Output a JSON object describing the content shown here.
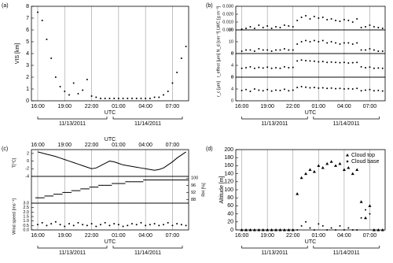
{
  "chart_data": [
    {
      "type": "scatter",
      "label": "(a)",
      "xlabel": "UTC",
      "dates": [
        "11/13/2011",
        "11/14/2011"
      ],
      "top_ticks": false,
      "x": [
        16,
        16.5,
        17,
        17.5,
        18,
        18.5,
        19,
        19.5,
        20,
        20.5,
        21,
        21.5,
        22,
        22.5,
        23,
        23.5,
        24,
        24.5,
        25,
        25.5,
        26,
        26.5,
        27,
        27.5,
        28,
        28.5,
        29,
        29.5,
        30,
        30.5,
        31,
        31.5,
        32,
        32.5
      ],
      "xlim": [
        15.3,
        32.8
      ],
      "xticks": [
        {
          "value": 16,
          "label": "16:00"
        },
        {
          "value": 19,
          "label": "19:00"
        },
        {
          "value": 22,
          "label": "22:00"
        },
        {
          "value": 25,
          "label": "01:00"
        },
        {
          "value": 28,
          "label": "04:00"
        },
        {
          "value": 31,
          "label": "07:00"
        }
      ],
      "subplots": [
        {
          "ylabel": "VIS [km]",
          "ylim": [
            0,
            8
          ],
          "yticks": [
            0,
            1,
            2,
            3,
            4,
            5,
            6,
            7,
            8
          ],
          "side": "left",
          "series": [
            {
              "marker": "dot",
              "color": "#000000",
              "values": [
                7.5,
                6.8,
                5.2,
                3.6,
                2.0,
                1.2,
                0.8,
                0.5,
                1.5,
                0.6,
                0.9,
                1.8,
                0.4,
                0.3,
                0.2,
                0.2,
                0.2,
                0.2,
                0.2,
                0.2,
                0.2,
                0.2,
                0.2,
                0.2,
                0.2,
                0.2,
                0.3,
                0.3,
                0.5,
                0.8,
                1.5,
                2.4,
                3.6,
                4.6
              ]
            }
          ]
        }
      ]
    },
    {
      "type": "scatter",
      "label": "(b)",
      "xlabel": "UTC",
      "dates": [
        "11/13/2011",
        "11/14/2011"
      ],
      "top_ticks": false,
      "x": [
        16,
        16.5,
        17,
        17.5,
        18,
        18.5,
        19,
        19.5,
        20,
        20.5,
        21,
        21.5,
        22,
        22.5,
        23,
        23.5,
        24,
        24.5,
        25,
        25.5,
        26,
        26.5,
        27,
        27.5,
        28,
        28.5,
        29,
        29.5,
        30,
        30.5,
        31,
        31.5,
        32,
        32.5
      ],
      "xlim": [
        15.3,
        32.8
      ],
      "xticks": [
        {
          "value": 16,
          "label": "16:00"
        },
        {
          "value": 19,
          "label": "19:00"
        },
        {
          "value": 22,
          "label": "22:00"
        },
        {
          "value": 25,
          "label": "01:00"
        },
        {
          "value": 28,
          "label": "04:00"
        },
        {
          "value": 31,
          "label": "07:00"
        }
      ],
      "subplots": [
        {
          "ylabel": "LWC [g m⁻³]",
          "ylim": [
            0,
            0.03
          ],
          "yticks": [
            {
              "value": 0,
              "label": "0.000"
            },
            {
              "value": 0.01,
              "label": "0.010"
            },
            {
              "value": 0.02,
              "label": "0.020"
            },
            {
              "value": 0.03,
              "label": "0.030"
            }
          ],
          "side": "left",
          "series": [
            {
              "marker": "dot",
              "color": "#000000",
              "values": [
                0.001,
                0.002,
                0.004,
                0.002,
                0.006,
                0.003,
                0.005,
                0.002,
                0.004,
                0.003,
                0.006,
                0.005,
                0.004,
                0.012,
                0.016,
                0.018,
                0.014,
                0.017,
                0.015,
                0.016,
                0.013,
                0.014,
                0.012,
                0.011,
                0.013,
                0.012,
                0.01,
                0.014,
                0.003,
                0.004,
                0.006,
                0.004,
                0.003,
                0.002
              ]
            }
          ]
        },
        {
          "ylabel": "N_d [cm⁻³]",
          "ylim": [
            0,
            20
          ],
          "yticks": [
            0,
            10,
            20
          ],
          "side": "left",
          "series": [
            {
              "marker": "dot",
              "color": "#000000",
              "values": [
                2,
                3,
                3,
                2,
                4,
                3,
                3,
                2,
                3,
                3,
                4,
                3,
                3,
                8,
                10,
                11,
                10,
                11,
                10,
                11,
                9,
                10,
                9,
                8,
                9,
                9,
                8,
                9,
                3,
                3,
                4,
                3,
                2,
                2
              ]
            }
          ]
        },
        {
          "ylabel": "r_effect [μm]",
          "ylim": [
            0,
            8
          ],
          "yticks": [
            0,
            4,
            8
          ],
          "side": "left",
          "series": [
            {
              "marker": "dot",
              "color": "#000000",
              "values": [
                3,
                3.2,
                3.5,
                3,
                3.3,
                3.1,
                3.4,
                3,
                3.2,
                3,
                3.5,
                3.2,
                3.3,
                5.5,
                5.8,
                5.6,
                5.5,
                5.4,
                5.2,
                5.3,
                5,
                5.1,
                5,
                4.9,
                5,
                4.8,
                4.9,
                5,
                3.5,
                3.2,
                3.4,
                3,
                3.1,
                3
              ]
            }
          ]
        },
        {
          "ylabel": "r_c [μm]",
          "ylim": [
            0,
            8
          ],
          "yticks": [
            0,
            4,
            8
          ],
          "side": "left",
          "series": [
            {
              "marker": "dot",
              "color": "#000000",
              "values": [
                3.5,
                3.8,
                3.2,
                4,
                3.6,
                3.4,
                3.8,
                3.3,
                3.6,
                3.5,
                3.9,
                3.4,
                3.6,
                4.5,
                4.8,
                4.6,
                4.4,
                4.5,
                4.3,
                4.4,
                4.2,
                4.3,
                4.1,
                4.2,
                4,
                4.1,
                4,
                4.2,
                3.4,
                3.6,
                3.8,
                3.4,
                3.5,
                3.3
              ]
            }
          ]
        }
      ]
    },
    {
      "type": "scatter",
      "label": "(c)",
      "xlabel": "UTC",
      "dates": [
        "11/13/2011",
        "11/14/2011"
      ],
      "top_ticks": true,
      "x": [
        16,
        16.5,
        17,
        17.5,
        18,
        18.5,
        19,
        19.5,
        20,
        20.5,
        21,
        21.5,
        22,
        22.5,
        23,
        23.5,
        24,
        24.5,
        25,
        25.5,
        26,
        26.5,
        27,
        27.5,
        28,
        28.5,
        29,
        29.5,
        30,
        30.5,
        31,
        31.5,
        32,
        32.5
      ],
      "xlim": [
        15.3,
        32.8
      ],
      "xticks": [
        {
          "value": 16,
          "label": "16:00"
        },
        {
          "value": 19,
          "label": "19:00"
        },
        {
          "value": 22,
          "label": "22:00"
        },
        {
          "value": 25,
          "label": "01:00"
        },
        {
          "value": 28,
          "label": "04:00"
        },
        {
          "value": 31,
          "label": "07:00"
        }
      ],
      "subplots": [
        {
          "ylabel": "T[°C]",
          "ylim": [
            -4,
            3
          ],
          "yticks": [
            -4,
            -2,
            0,
            2
          ],
          "side": "left",
          "series": [
            {
              "marker": "line",
              "color": "#000000",
              "values": [
                2.4,
                2.1,
                1.8,
                1.5,
                1.2,
                0.8,
                0.4,
                0,
                -0.4,
                -0.8,
                -1.2,
                -1.6,
                -2,
                -1.8,
                -1.2,
                -0.6,
                0,
                -0.2,
                -0.6,
                -1,
                -1.2,
                -1.4,
                -1.6,
                -1.8,
                -2,
                -2.2,
                -2.4,
                -2.2,
                -1.8,
                -1,
                -0.2,
                0.8,
                1.6,
                2.4
              ]
            }
          ]
        },
        {
          "ylabel": "RH [%]",
          "ylim": [
            86,
            101
          ],
          "yticks": [
            88,
            92,
            96,
            100
          ],
          "side": "right",
          "series": [
            {
              "marker": "dash",
              "color": "#000000",
              "values": [
                89,
                89,
                90,
                90,
                91,
                91,
                92,
                92,
                93,
                93,
                94,
                94,
                95,
                95,
                96,
                96,
                96,
                97,
                97,
                97,
                98,
                98,
                98,
                98,
                99,
                99,
                99,
                99,
                99,
                99,
                99,
                99,
                99,
                99
              ]
            }
          ]
        },
        {
          "ylabel": "Wind speed [ms⁻¹]",
          "ylim": [
            0,
            3
          ],
          "yticks": [
            {
              "value": 0,
              "label": "0.0"
            },
            0.5,
            {
              "value": 1,
              "label": "1.0"
            },
            1.5,
            {
              "value": 2,
              "label": "2.0"
            },
            2.5,
            {
              "value": 3,
              "label": "3.0"
            }
          ],
          "side": "left",
          "series": [
            {
              "marker": "dot",
              "color": "#000000",
              "values": [
                0.6,
                0.8,
                0.5,
                0.7,
                0.9,
                0.6,
                0.4,
                0.7,
                0.5,
                0.8,
                0.6,
                0.5,
                0.7,
                0.4,
                0.6,
                0.8,
                0.5,
                0.7,
                0.6,
                0.4,
                0.5,
                0.7,
                0.6,
                0.8,
                0.5,
                0.6,
                0.7,
                0.5,
                0.6,
                0.8,
                0.5,
                0.7,
                0.6,
                0.5
              ]
            }
          ]
        }
      ]
    },
    {
      "type": "scatter",
      "label": "(d)",
      "xlabel": "UTC",
      "dates": [
        "11/13/2011",
        "11/14/2011"
      ],
      "top_ticks": false,
      "legend": "upper right",
      "x": [
        16,
        16.5,
        17,
        17.5,
        18,
        18.5,
        19,
        19.5,
        20,
        20.5,
        21,
        21.5,
        22,
        22.5,
        23,
        23.5,
        24,
        24.5,
        25,
        25.5,
        26,
        26.5,
        27,
        27.5,
        28,
        28.5,
        29,
        29.5,
        30,
        30.5,
        31,
        31.5,
        32,
        32.5
      ],
      "xlim": [
        15.3,
        32.8
      ],
      "xticks": [
        {
          "value": 16,
          "label": "16:00"
        },
        {
          "value": 19,
          "label": "19:00"
        },
        {
          "value": 22,
          "label": "22:00"
        },
        {
          "value": 25,
          "label": "01:00"
        },
        {
          "value": 28,
          "label": "04:00"
        },
        {
          "value": 31,
          "label": "07:00"
        }
      ],
      "subplots": [
        {
          "ylabel": "Altitude [m]",
          "ylim": [
            0,
            200
          ],
          "yticks": [
            0,
            20,
            40,
            60,
            80,
            100,
            120,
            140,
            160,
            180,
            200
          ],
          "side": "left",
          "series": [
            {
              "name": "Cloud top",
              "marker": "triangle",
              "color": "#000000",
              "values": [
                0,
                0,
                0,
                0,
                0,
                0,
                0,
                0,
                0,
                0,
                0,
                0,
                0,
                90,
                130,
                140,
                150,
                145,
                160,
                155,
                165,
                170,
                160,
                165,
                150,
                155,
                140,
                150,
                70,
                30,
                60,
                0,
                0,
                0
              ]
            },
            {
              "name": "Cloud base",
              "marker": "dot",
              "color": "#000000",
              "values": [
                0,
                0,
                0,
                0,
                0,
                0,
                0,
                0,
                0,
                0,
                0,
                0,
                0,
                0,
                10,
                20,
                5,
                0,
                15,
                10,
                0,
                5,
                0,
                10,
                0,
                5,
                0,
                0,
                30,
                50,
                40,
                0,
                0,
                0
              ]
            }
          ]
        }
      ]
    }
  ]
}
